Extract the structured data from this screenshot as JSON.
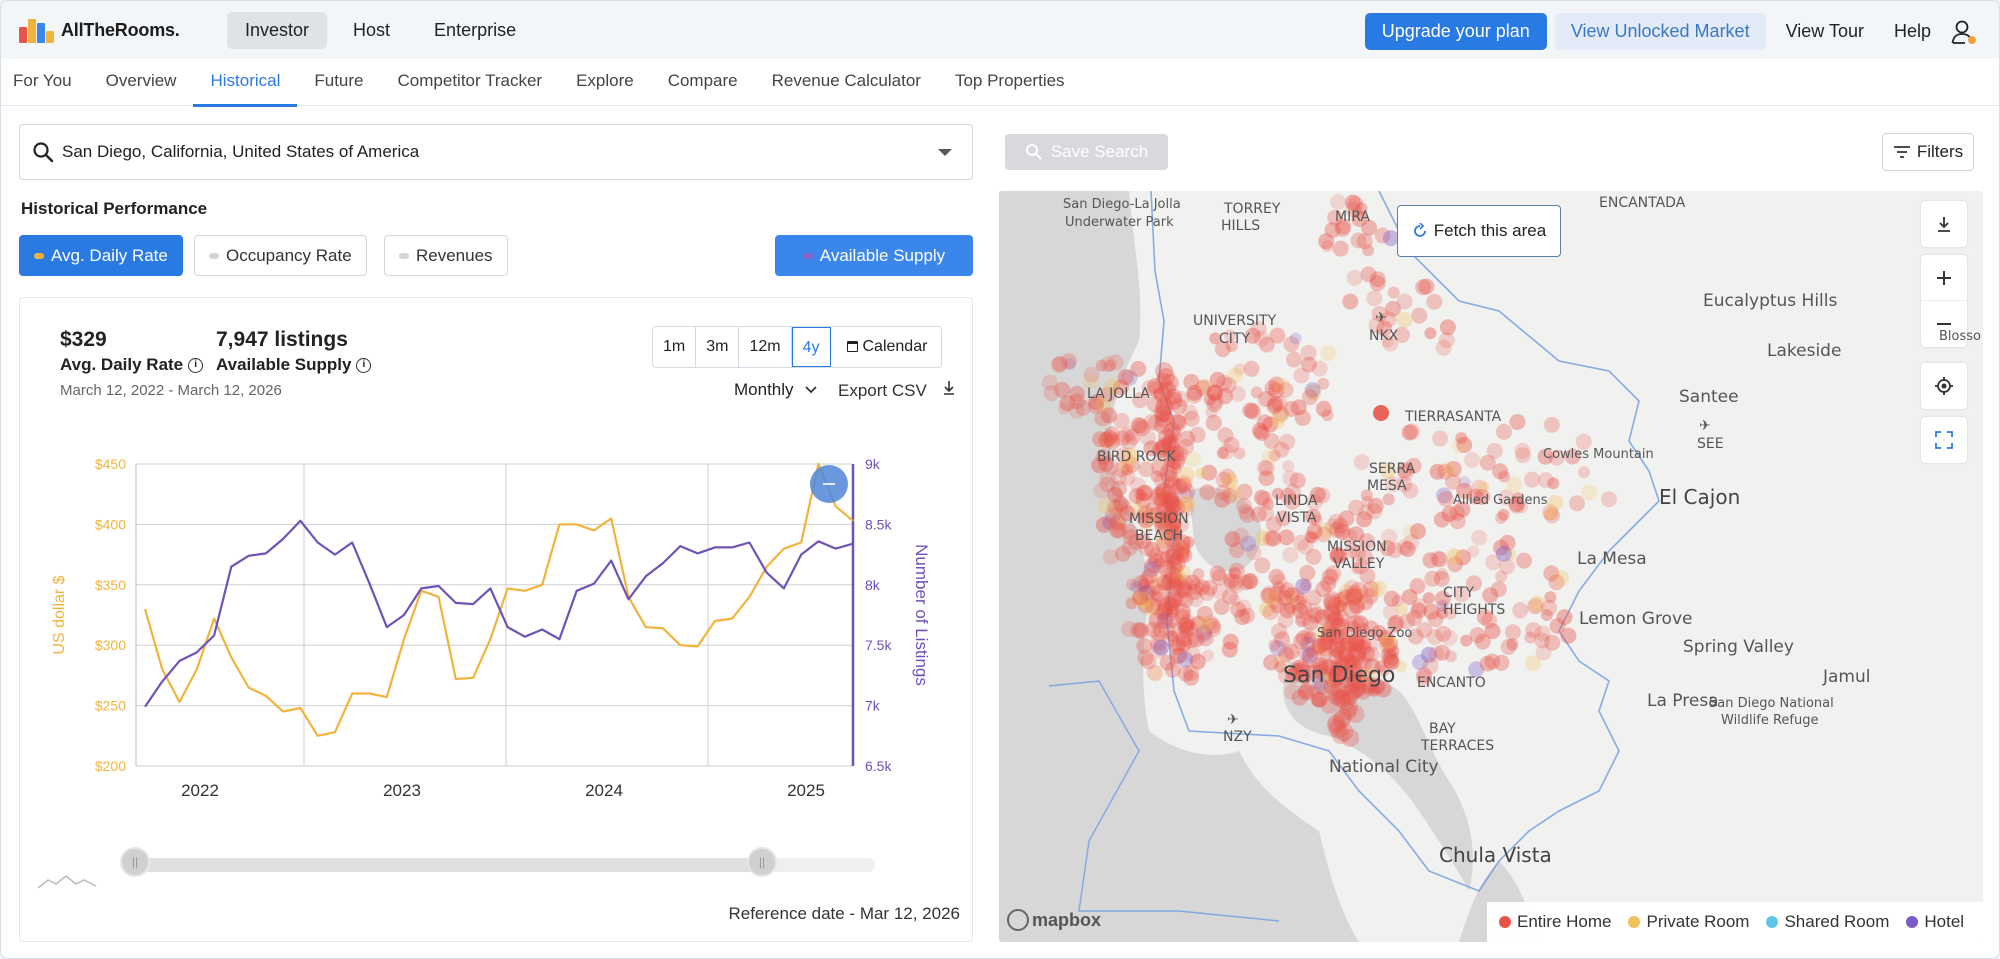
{
  "brand": {
    "name": "AllTheRooms.",
    "logo_colors": [
      "#f2b33d",
      "#e8534a",
      "#3b86ea",
      "#8a63c7"
    ]
  },
  "modes": [
    {
      "label": "Investor",
      "active": true
    },
    {
      "label": "Host",
      "active": false
    },
    {
      "label": "Enterprise",
      "active": false
    }
  ],
  "header": {
    "upgrade_label": "Upgrade your plan",
    "unlocked_label": "View Unlocked Market",
    "tour_label": "View Tour",
    "help_label": "Help",
    "accent": "#2a7ae4"
  },
  "nav_tabs": [
    {
      "label": "For You",
      "active": false
    },
    {
      "label": "Overview",
      "active": false
    },
    {
      "label": "Historical",
      "active": true
    },
    {
      "label": "Future",
      "active": false
    },
    {
      "label": "Competitor Tracker",
      "active": false
    },
    {
      "label": "Explore",
      "active": false
    },
    {
      "label": "Compare",
      "active": false
    },
    {
      "label": "Revenue Calculator",
      "active": false
    },
    {
      "label": "Top Properties",
      "active": false
    }
  ],
  "search": {
    "value": "San Diego, California, United States of America"
  },
  "section_title": "Historical Performance",
  "metrics": {
    "adr_label": "Avg. Daily Rate",
    "occupancy_label": "Occupancy Rate",
    "revenues_label": "Revenues",
    "supply_label": "Available Supply",
    "adr_color": "#f2b33d",
    "supply_color": "#8a63c7"
  },
  "kpis": {
    "adr_value": "$329",
    "adr_label": "Avg. Daily Rate",
    "supply_value": "7,947 listings",
    "supply_label": "Available Supply",
    "date_range": "March 12, 2022 - March 12, 2026"
  },
  "range_buttons": [
    {
      "label": "1m",
      "active": false
    },
    {
      "label": "3m",
      "active": false
    },
    {
      "label": "12m",
      "active": false
    },
    {
      "label": "4y",
      "active": true
    }
  ],
  "calendar_label": "Calendar",
  "interval_label": "Monthly",
  "export_label": "Export CSV",
  "reference_date": "Reference date - Mar 12, 2026",
  "chart_data": {
    "type": "line",
    "x_tick_labels": [
      "2022",
      "2023",
      "2024",
      "2025"
    ],
    "y_left": {
      "label": "US dollar $",
      "ticks": [
        "$200",
        "$250",
        "$300",
        "$350",
        "$400",
        "$450"
      ],
      "range": [
        200,
        450
      ],
      "color": "#f2b33d"
    },
    "y_right": {
      "label": "Number of Listings",
      "ticks": [
        "6.5k",
        "7k",
        "7.5k",
        "8k",
        "8.5k",
        "9k"
      ],
      "range": [
        6500,
        9000
      ],
      "color": "#6f52b8"
    },
    "grid": true,
    "series": [
      {
        "axis": "left",
        "color": "#f2b33d",
        "values": [
          330,
          280,
          253,
          280,
          322,
          290,
          265,
          258,
          245,
          248,
          225,
          228,
          260,
          260,
          257,
          305,
          345,
          340,
          272,
          273,
          305,
          347,
          345,
          350,
          400,
          400,
          395,
          405,
          340,
          315,
          314,
          300,
          299,
          320,
          322,
          340,
          365,
          380,
          385,
          450,
          415,
          403
        ]
      },
      {
        "axis": "right",
        "color": "#6f52b8",
        "values": [
          6990,
          7200,
          7370,
          7440,
          7580,
          8150,
          8240,
          8260,
          8380,
          8530,
          8350,
          8250,
          8350,
          8010,
          7650,
          7750,
          7970,
          7990,
          7850,
          7840,
          7970,
          7650,
          7570,
          7630,
          7550,
          7950,
          8010,
          8200,
          7880,
          8070,
          8180,
          8320,
          8260,
          8310,
          8310,
          8350,
          8100,
          7970,
          8250,
          8360,
          8300,
          8340
        ]
      }
    ]
  },
  "map": {
    "save_search_label": "Save Search",
    "filters_label": "Filters",
    "fetch_label": "Fetch this area",
    "attribution": "mapbox",
    "legend": [
      {
        "label": "Entire Home",
        "color": "#e8534a"
      },
      {
        "label": "Private Room",
        "color": "#f2c15a"
      },
      {
        "label": "Shared Room",
        "color": "#5ec7e8"
      },
      {
        "label": "Hotel",
        "color": "#7b5cc7"
      }
    ],
    "labels": {
      "san_diego_la_jolla": "San Diego-La Jolla",
      "underwater_park": "Underwater Park",
      "torrey": "TORREY",
      "hills": "HILLS",
      "mira": "MIRA",
      "encantada": "ENCANTADA",
      "university": "UNIVERSITY",
      "city_u": "CITY",
      "nkx": "NKX",
      "eucalyptus": "Eucalyptus Hills",
      "lakeside": "Lakeside",
      "blosso": "Blosso",
      "la_jolla": "LA JOLLA",
      "tierrasanta": "TIERRASANTA",
      "santee": "Santee",
      "see": "SEE",
      "cowles": "Cowles Mountain",
      "bird_rock": "BIRD ROCK",
      "serra_mesa": "SERRA",
      "serra_mesa2": "MESA",
      "el_cajon": "El Cajon",
      "linda_vista": "LINDA",
      "linda_vista2": "VISTA",
      "allied": "Allied Gardens",
      "mission": "MISSION",
      "mission2": "BEACH",
      "mission_valley": "MISSION",
      "mission_valley2": "VALLEY",
      "la_mesa": "La Mesa",
      "city_heights": "CITY",
      "city_heights2": "HEIGHTS",
      "lemon_grove": "Lemon Grove",
      "san_diego_zoo": "San Diego Zoo",
      "spring_valley": "Spring Valley",
      "san_diego": "San Diego",
      "jamul": "Jamul",
      "encanto": "ENCANTO",
      "la_presa": "La Presa",
      "sd_refuge": "San Diego National",
      "sd_refuge2": "Wildlife Refuge",
      "nzy": "NZY",
      "bay": "BAY",
      "bay2": "TERRACES",
      "national_city": "National City",
      "chula_vista": "Chula Vista"
    }
  }
}
